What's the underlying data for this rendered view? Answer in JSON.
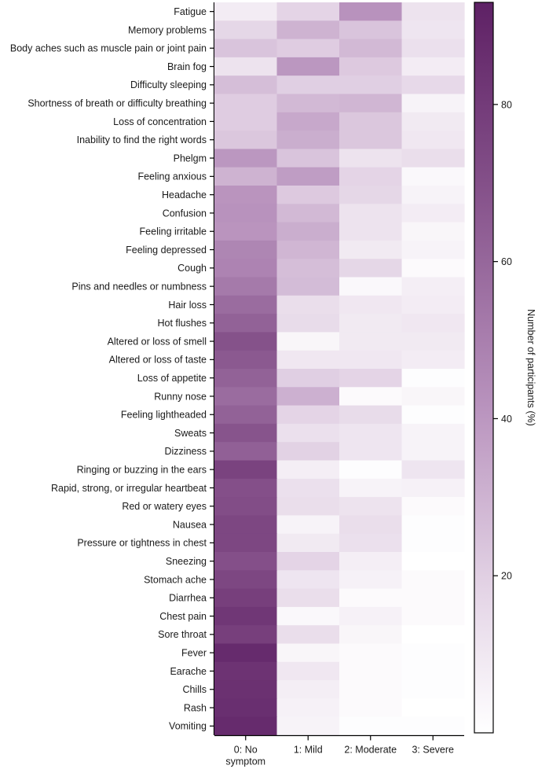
{
  "chart_data": {
    "type": "heatmap",
    "title": "",
    "xlabel": "",
    "ylabel": "",
    "x_categories": [
      {
        "line1": "0: No",
        "line2": "symptom"
      },
      {
        "line1": "1: Mild",
        "line2": ""
      },
      {
        "line1": "2: Moderate",
        "line2": ""
      },
      {
        "line1": "3: Severe",
        "line2": ""
      }
    ],
    "y_categories": [
      "Fatigue",
      "Memory problems",
      "Body aches such as muscle pain or joint pain",
      "Brain fog",
      "Difficulty sleeping",
      "Shortness of breath or difficulty breathing",
      "Loss of concentration",
      "Inability to find the right words",
      "Phelgm",
      "Feeling anxious",
      "Headache",
      "Confusion",
      "Feeling irritable",
      "Feeling depressed",
      "Cough",
      "Pins and needles or numbness",
      "Hair loss",
      "Hot flushes",
      "Altered or loss of smell",
      "Altered or loss of taste",
      "Loss of appetite",
      "Runny nose",
      "Feeling lightheaded",
      "Sweats",
      "Dizziness",
      "Ringing or buzzing in the ears",
      "Rapid, strong, or irregular heartbeat",
      "Red or watery eyes",
      "Nausea",
      "Pressure or tightness in chest",
      "Sneezing",
      "Stomach ache",
      "Diarrhea",
      "Chest pain",
      "Sore throat",
      "Fever",
      "Earache",
      "Chills",
      "Rash",
      "Vomiting"
    ],
    "values": [
      [
        8,
        18,
        42,
        12
      ],
      [
        17,
        30,
        24,
        11
      ],
      [
        24,
        21,
        28,
        13
      ],
      [
        12,
        40,
        22,
        8
      ],
      [
        26,
        20,
        20,
        16
      ],
      [
        21,
        28,
        29,
        5
      ],
      [
        21,
        34,
        23,
        9
      ],
      [
        23,
        32,
        23,
        10
      ],
      [
        40,
        24,
        12,
        14
      ],
      [
        30,
        38,
        18,
        3
      ],
      [
        41,
        22,
        17,
        5
      ],
      [
        42,
        28,
        12,
        8
      ],
      [
        41,
        32,
        12,
        4
      ],
      [
        47,
        29,
        9,
        5
      ],
      [
        48,
        26,
        17,
        2
      ],
      [
        52,
        27,
        3,
        7
      ],
      [
        58,
        14,
        10,
        8
      ],
      [
        62,
        15,
        9,
        10
      ],
      [
        69,
        4,
        9,
        9
      ],
      [
        66,
        10,
        10,
        8
      ],
      [
        62,
        20,
        18,
        1
      ],
      [
        58,
        31,
        2,
        4
      ],
      [
        62,
        18,
        15,
        1
      ],
      [
        68,
        13,
        11,
        5
      ],
      [
        63,
        19,
        11,
        5
      ],
      [
        76,
        7,
        1,
        11
      ],
      [
        70,
        13,
        5,
        6
      ],
      [
        71,
        14,
        12,
        2
      ],
      [
        74,
        5,
        14,
        1
      ],
      [
        74,
        9,
        13,
        1
      ],
      [
        70,
        18,
        7,
        0
      ],
      [
        74,
        11,
        6,
        2
      ],
      [
        78,
        14,
        2,
        2
      ],
      [
        82,
        3,
        6,
        2
      ],
      [
        78,
        14,
        4,
        0
      ],
      [
        88,
        4,
        2,
        1
      ],
      [
        84,
        10,
        2,
        1
      ],
      [
        85,
        7,
        2,
        1
      ],
      [
        86,
        6,
        2,
        0
      ],
      [
        88,
        5,
        1,
        1
      ]
    ],
    "value_range": [
      0,
      93
    ],
    "colorbar": {
      "label": "Number of participants (%)",
      "ticks": [
        20,
        40,
        60,
        80
      ],
      "low_color": "#ffffff",
      "high_color": "#5e2165"
    },
    "grid": false
  }
}
